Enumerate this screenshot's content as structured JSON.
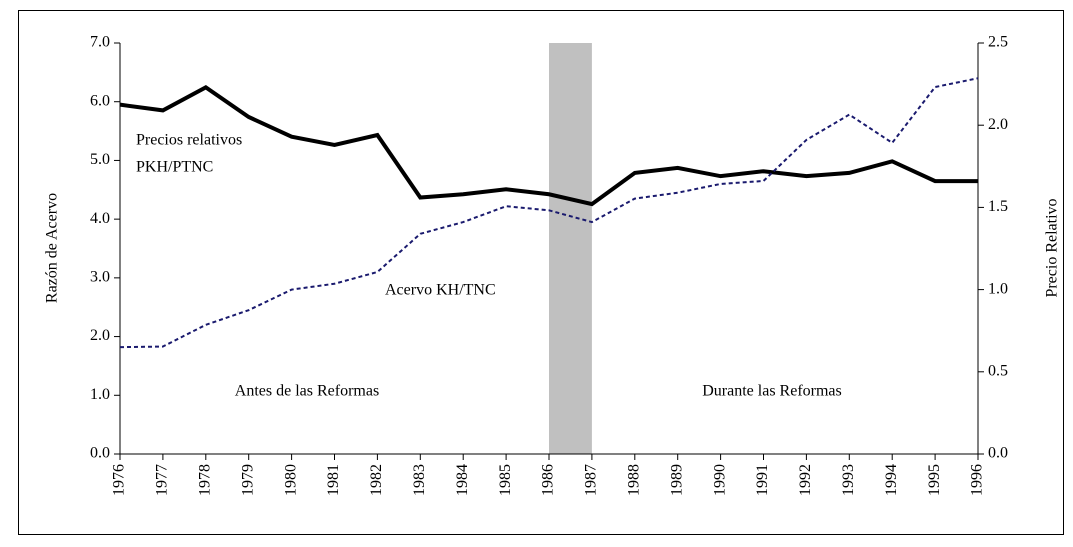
{
  "chart_data": {
    "type": "line",
    "ylabel": "Razón de Acervo",
    "y2label": "Precio Relativo",
    "x": [
      1976,
      1977,
      1978,
      1979,
      1980,
      1981,
      1982,
      1983,
      1984,
      1985,
      1986,
      1987,
      1988,
      1989,
      1990,
      1991,
      1992,
      1993,
      1994,
      1995,
      1996
    ],
    "xlim": [
      1976,
      1996
    ],
    "xticks": [
      1976,
      1977,
      1978,
      1979,
      1980,
      1981,
      1982,
      1983,
      1984,
      1985,
      1986,
      1987,
      1988,
      1989,
      1990,
      1991,
      1992,
      1993,
      1994,
      1995,
      1996
    ],
    "ylim": [
      0,
      7
    ],
    "yticks": [
      {
        "value": 0,
        "label": "0.0"
      },
      {
        "value": 1,
        "label": "1.0"
      },
      {
        "value": 2,
        "label": "2.0"
      },
      {
        "value": 3,
        "label": "3.0"
      },
      {
        "value": 4,
        "label": "4.0"
      },
      {
        "value": 5,
        "label": "5.0"
      },
      {
        "value": 6,
        "label": "6.0"
      },
      {
        "value": 7,
        "label": "7.0"
      }
    ],
    "y2lim": [
      0,
      2.5
    ],
    "y2ticks": [
      {
        "value": 0,
        "label": "0.0"
      },
      0.5,
      {
        "value": 1,
        "label": "1.0"
      },
      1.5,
      {
        "value": 2,
        "label": "2.0"
      },
      2.5
    ],
    "shaded": [
      1986,
      1987
    ],
    "shade_color": "#c0c0c0",
    "series": [
      {
        "color": "#000000",
        "style": "solid",
        "axis": "y2",
        "values": [
          2.125,
          2.09,
          2.23,
          2.05,
          1.93,
          1.88,
          1.94,
          1.56,
          1.58,
          1.61,
          1.58,
          1.52,
          1.71,
          1.74,
          1.69,
          1.72,
          1.69,
          1.71,
          1.78,
          1.66,
          1.66
        ]
      },
      {
        "color": "#1a1a6e",
        "style": "dotted",
        "values": [
          1.82,
          1.83,
          2.2,
          2.45,
          2.8,
          2.9,
          3.1,
          3.75,
          3.95,
          4.22,
          4.15,
          3.95,
          4.35,
          4.45,
          4.6,
          4.65,
          5.35,
          5.78,
          5.3,
          6.25,
          6.4
        ]
      }
    ],
    "annotations": [
      "Precios relativos",
      "PKH/PTNC",
      "Acervo KH/TNC",
      "Antes de las Reformas",
      "Durante las Reformas"
    ]
  }
}
